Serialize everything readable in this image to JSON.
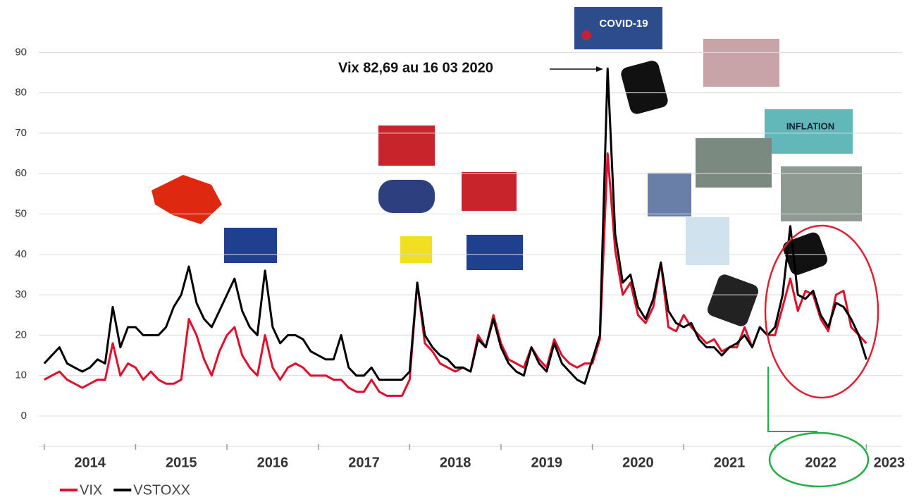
{
  "chart_data": {
    "type": "line",
    "x": [
      2014,
      2014.083,
      2014.167,
      2014.25,
      2014.333,
      2014.417,
      2014.5,
      2014.583,
      2014.667,
      2014.75,
      2014.833,
      2014.917,
      2015,
      2015.083,
      2015.167,
      2015.25,
      2015.333,
      2015.417,
      2015.5,
      2015.583,
      2015.667,
      2015.75,
      2015.833,
      2015.917,
      2016,
      2016.083,
      2016.167,
      2016.25,
      2016.333,
      2016.417,
      2016.5,
      2016.583,
      2016.667,
      2016.75,
      2016.833,
      2016.917,
      2017,
      2017.083,
      2017.167,
      2017.25,
      2017.333,
      2017.417,
      2017.5,
      2017.583,
      2017.667,
      2017.75,
      2017.833,
      2017.917,
      2018,
      2018.083,
      2018.167,
      2018.25,
      2018.333,
      2018.417,
      2018.5,
      2018.583,
      2018.667,
      2018.75,
      2018.833,
      2018.917,
      2019,
      2019.083,
      2019.167,
      2019.25,
      2019.333,
      2019.417,
      2019.5,
      2019.583,
      2019.667,
      2019.75,
      2019.833,
      2019.917,
      2020,
      2020.083,
      2020.167,
      2020.25,
      2020.333,
      2020.417,
      2020.5,
      2020.583,
      2020.667,
      2020.75,
      2020.833,
      2020.917,
      2021,
      2021.083,
      2021.167,
      2021.25,
      2021.333,
      2021.417,
      2021.5,
      2021.583,
      2021.667,
      2021.75,
      2021.833,
      2021.917,
      2022,
      2022.083,
      2022.167,
      2022.25,
      2022.333,
      2022.417,
      2022.5,
      2022.583,
      2022.667,
      2022.75,
      2022.833,
      2022.917,
      2023
    ],
    "series": [
      {
        "name": "VIX",
        "color": "#e0102a",
        "values": [
          9,
          10,
          11,
          9,
          8,
          7,
          8,
          9,
          9,
          18,
          10,
          13,
          12,
          9,
          11,
          9,
          8,
          8,
          9,
          24,
          20,
          14,
          10,
          16,
          20,
          22,
          15,
          12,
          10,
          20,
          12,
          9,
          12,
          13,
          12,
          10,
          10,
          10,
          9,
          9,
          7,
          6,
          6,
          9,
          6,
          5,
          5,
          5,
          9,
          33,
          18,
          16,
          13,
          12,
          11,
          12,
          11,
          20,
          17,
          25,
          18,
          14,
          13,
          12,
          17,
          14,
          12,
          19,
          15,
          13,
          12,
          13,
          13,
          19,
          65,
          41,
          30,
          33,
          25,
          23,
          27,
          38,
          22,
          21,
          25,
          22,
          20,
          18,
          19,
          16,
          17,
          17,
          22,
          17,
          22,
          20,
          20,
          27,
          34,
          26,
          31,
          30,
          24,
          21,
          30,
          31,
          22,
          20,
          18
        ]
      },
      {
        "name": "VSTOXX",
        "color": "#000000",
        "values": [
          13,
          15,
          17,
          13,
          12,
          11,
          12,
          14,
          13,
          27,
          17,
          22,
          22,
          20,
          20,
          20,
          22,
          27,
          30,
          37,
          28,
          24,
          22,
          26,
          30,
          34,
          26,
          22,
          20,
          36,
          22,
          18,
          20,
          20,
          19,
          16,
          15,
          14,
          14,
          20,
          12,
          10,
          10,
          12,
          9,
          9,
          9,
          9,
          11,
          33,
          20,
          17,
          15,
          14,
          12,
          12,
          11,
          19,
          17,
          24,
          17,
          13,
          11,
          10,
          17,
          13,
          11,
          18,
          13,
          11,
          9,
          8,
          14,
          20,
          86,
          45,
          33,
          35,
          27,
          24,
          29,
          38,
          26,
          23,
          22,
          23,
          19,
          17,
          17,
          15,
          17,
          18,
          20,
          17,
          22,
          20,
          22,
          30,
          47,
          30,
          29,
          31,
          25,
          22,
          28,
          27,
          24,
          20,
          14
        ]
      }
    ],
    "xlim": [
      2013.94,
      2023.39
    ],
    "ylim": [
      -7.5,
      92.5
    ],
    "yticks": [
      0,
      10,
      20,
      30,
      40,
      50,
      60,
      70,
      80,
      90
    ],
    "xticks": [
      {
        "value": 2014.5,
        "label": "2014"
      },
      {
        "value": 2015.5,
        "label": "2015"
      },
      {
        "value": 2016.5,
        "label": "2016"
      },
      {
        "value": 2017.5,
        "label": "2017"
      },
      {
        "value": 2018.5,
        "label": "2018"
      },
      {
        "value": 2019.5,
        "label": "2019"
      },
      {
        "value": 2020.5,
        "label": "2020"
      },
      {
        "value": 2021.5,
        "label": "2021"
      },
      {
        "value": 2022.5,
        "label": "2022"
      },
      {
        "value": 2023.25,
        "label": "2023"
      }
    ],
    "minor_xticks": [
      2014,
      2015,
      2016,
      2017,
      2018,
      2019,
      2020,
      2021,
      2022,
      2023
    ],
    "grid": true,
    "annotations": {
      "peak": "Vix 82,69 au 16 03 2020",
      "covid": "COVID-19",
      "inflation": "INFLATION"
    }
  }
}
